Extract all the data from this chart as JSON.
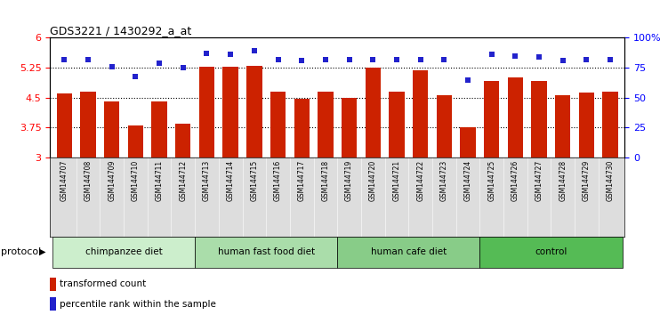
{
  "title": "GDS3221 / 1430292_a_at",
  "samples": [
    "GSM144707",
    "GSM144708",
    "GSM144709",
    "GSM144710",
    "GSM144711",
    "GSM144712",
    "GSM144713",
    "GSM144714",
    "GSM144715",
    "GSM144716",
    "GSM144717",
    "GSM144718",
    "GSM144719",
    "GSM144720",
    "GSM144721",
    "GSM144722",
    "GSM144723",
    "GSM144724",
    "GSM144725",
    "GSM144726",
    "GSM144727",
    "GSM144728",
    "GSM144729",
    "GSM144730"
  ],
  "bar_values": [
    4.6,
    4.65,
    4.4,
    3.8,
    4.4,
    3.85,
    5.28,
    5.27,
    5.3,
    4.65,
    4.47,
    4.65,
    4.5,
    5.25,
    4.65,
    5.18,
    4.55,
    3.75,
    4.92,
    5.0,
    4.92,
    4.55,
    4.62,
    4.65
  ],
  "percentile_values": [
    82,
    82,
    76,
    68,
    79,
    75,
    87,
    86,
    89,
    82,
    81,
    82,
    82,
    82,
    82,
    82,
    82,
    65,
    86,
    85,
    84,
    81,
    82,
    82
  ],
  "bar_color": "#CC2200",
  "percentile_color": "#2222CC",
  "groups": [
    {
      "label": "chimpanzee diet",
      "start": 0,
      "end": 6,
      "color": "#CCEECC"
    },
    {
      "label": "human fast food diet",
      "start": 6,
      "end": 12,
      "color": "#AADDAA"
    },
    {
      "label": "human cafe diet",
      "start": 12,
      "end": 18,
      "color": "#88CC88"
    },
    {
      "label": "control",
      "start": 18,
      "end": 24,
      "color": "#55BB55"
    }
  ],
  "ylim_left": [
    3.0,
    6.0
  ],
  "ylim_right": [
    0,
    100
  ],
  "yticks_left": [
    3.0,
    3.75,
    4.5,
    5.25,
    6.0
  ],
  "ytick_labels_left": [
    "3",
    "3.75",
    "4.5",
    "5.25",
    "6"
  ],
  "yticks_right": [
    0,
    25,
    50,
    75,
    100
  ],
  "ytick_labels_right": [
    "0",
    "25",
    "50",
    "75",
    "100%"
  ],
  "bar_width": 0.65,
  "hgrid_values": [
    3.75,
    4.5,
    5.25
  ],
  "legend_items": [
    {
      "label": "transformed count",
      "color": "#CC2200"
    },
    {
      "label": "percentile rank within the sample",
      "color": "#2222CC"
    }
  ],
  "protocol_label": "protocol"
}
